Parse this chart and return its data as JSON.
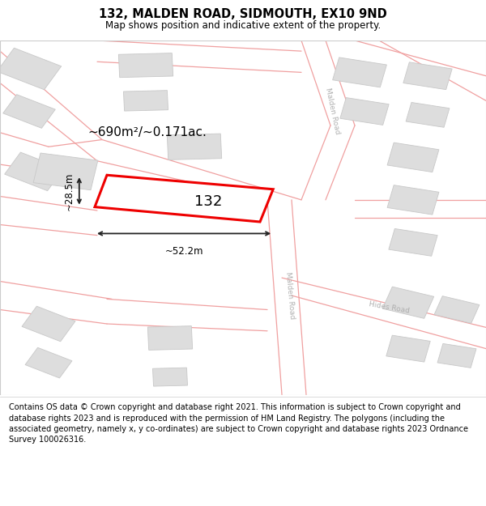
{
  "title": "132, MALDEN ROAD, SIDMOUTH, EX10 9ND",
  "subtitle": "Map shows position and indicative extent of the property.",
  "footer": "Contains OS data © Crown copyright and database right 2021. This information is subject to Crown copyright and database rights 2023 and is reproduced with the permission of HM Land Registry. The polygons (including the associated geometry, namely x, y co-ordinates) are subject to Crown copyright and database rights 2023 Ordnance Survey 100026316.",
  "map_bg": "#f2f2f2",
  "road_line_color": "#f0a0a0",
  "building_fill": "#dddddd",
  "building_edge": "#cccccc",
  "road_label_color": "#b0b0b0",
  "highlight_color": "#ee0000",
  "highlight_label": "132",
  "area_label": "~690m²/~0.171ac.",
  "width_label": "~52.2m",
  "height_label": "~28.5m",
  "title_fontsize": 10.5,
  "subtitle_fontsize": 8.5,
  "footer_fontsize": 7.0,
  "map_border_color": "#dddddd"
}
